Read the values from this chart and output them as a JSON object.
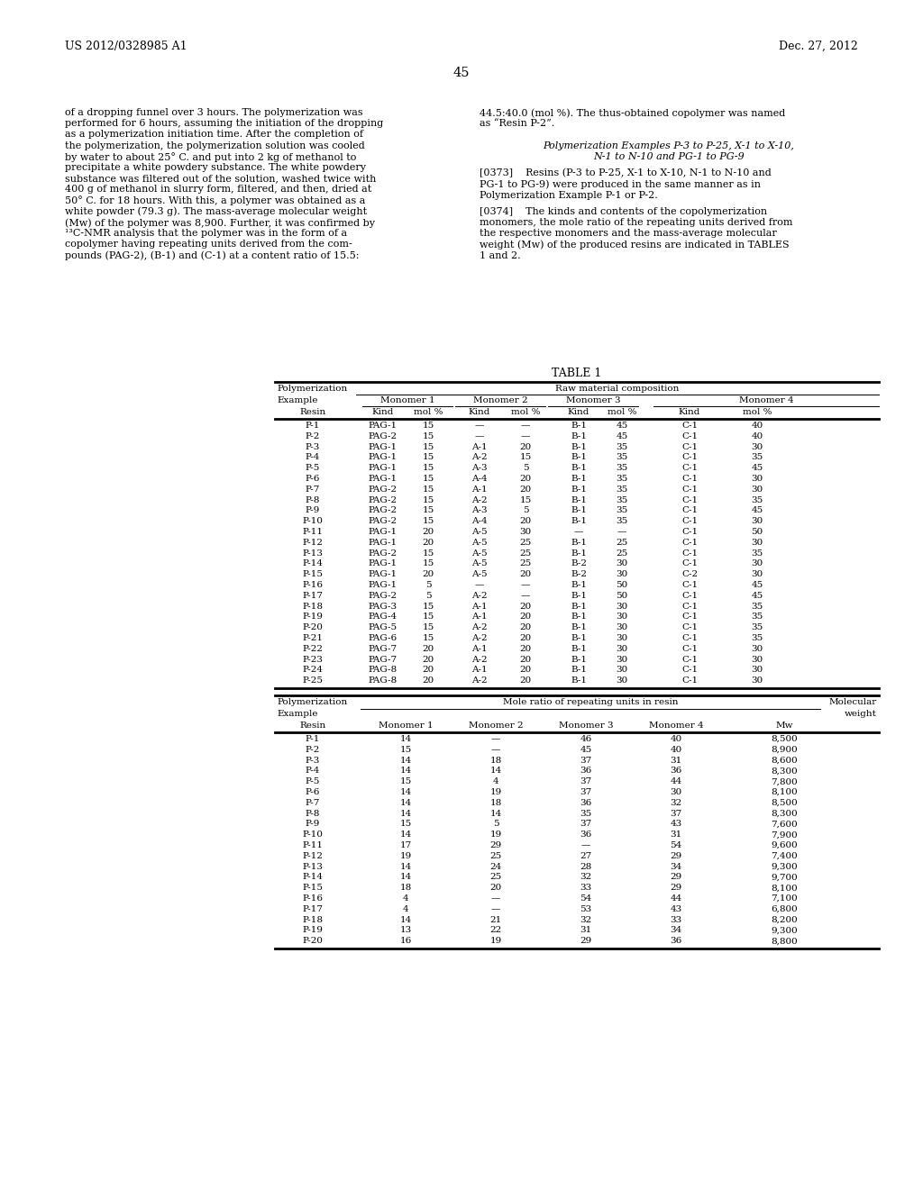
{
  "background_color": "#ffffff",
  "header_left": "US 2012/0328985 A1",
  "header_right": "Dec. 27, 2012",
  "page_number": "45",
  "left_col_text": [
    "of a dropping funnel over 3 hours. The polymerization was",
    "performed for 6 hours, assuming the initiation of the dropping",
    "as a polymerization initiation time. After the completion of",
    "the polymerization, the polymerization solution was cooled",
    "by water to about 25° C. and put into 2 kg of methanol to",
    "precipitate a white powdery substance. The white powdery",
    "substance was filtered out of the solution, washed twice with",
    "400 g of methanol in slurry form, filtered, and then, dried at",
    "50° C. for 18 hours. With this, a polymer was obtained as a",
    "white powder (79.3 g). The mass-average molecular weight",
    "(Mw) of the polymer was 8,900. Further, it was confirmed by",
    "¹³C-NMR analysis that the polymer was in the form of a",
    "copolymer having repeating units derived from the com-",
    "pounds (PAG-2), (B-1) and (C-1) at a content ratio of 15.5:"
  ],
  "right_col_text": [
    "44.5:40.0 (mol %). The thus-obtained copolymer was named",
    "as “Resin P-2”.",
    "",
    "Polymerization Examples P-3 to P-25, X-1 to X-10,",
    "N-1 to N-10 and PG-1 to PG-9",
    "",
    "[0373]    Resins (P-3 to P-25, X-1 to X-10, N-1 to N-10 and",
    "PG-1 to PG-9) were produced in the same manner as in",
    "Polymerization Example P-1 or P-2.",
    "",
    "[0374]    The kinds and contents of the copolymerization",
    "monomers, the mole ratio of the repeating units derived from",
    "the respective monomers and the mass-average molecular",
    "weight (Mw) of the produced resins are indicated in TABLES",
    "1 and 2."
  ],
  "table1_title": "TABLE 1",
  "table1_data": [
    [
      "P-1",
      "PAG-1",
      "15",
      "—",
      "—",
      "B-1",
      "45",
      "C-1",
      "40"
    ],
    [
      "P-2",
      "PAG-2",
      "15",
      "—",
      "—",
      "B-1",
      "45",
      "C-1",
      "40"
    ],
    [
      "P-3",
      "PAG-1",
      "15",
      "A-1",
      "20",
      "B-1",
      "35",
      "C-1",
      "30"
    ],
    [
      "P-4",
      "PAG-1",
      "15",
      "A-2",
      "15",
      "B-1",
      "35",
      "C-1",
      "35"
    ],
    [
      "P-5",
      "PAG-1",
      "15",
      "A-3",
      "5",
      "B-1",
      "35",
      "C-1",
      "45"
    ],
    [
      "P-6",
      "PAG-1",
      "15",
      "A-4",
      "20",
      "B-1",
      "35",
      "C-1",
      "30"
    ],
    [
      "P-7",
      "PAG-2",
      "15",
      "A-1",
      "20",
      "B-1",
      "35",
      "C-1",
      "30"
    ],
    [
      "P-8",
      "PAG-2",
      "15",
      "A-2",
      "15",
      "B-1",
      "35",
      "C-1",
      "35"
    ],
    [
      "P-9",
      "PAG-2",
      "15",
      "A-3",
      "5",
      "B-1",
      "35",
      "C-1",
      "45"
    ],
    [
      "P-10",
      "PAG-2",
      "15",
      "A-4",
      "20",
      "B-1",
      "35",
      "C-1",
      "30"
    ],
    [
      "P-11",
      "PAG-1",
      "20",
      "A-5",
      "30",
      "—",
      "—",
      "C-1",
      "50"
    ],
    [
      "P-12",
      "PAG-1",
      "20",
      "A-5",
      "25",
      "B-1",
      "25",
      "C-1",
      "30"
    ],
    [
      "P-13",
      "PAG-2",
      "15",
      "A-5",
      "25",
      "B-1",
      "25",
      "C-1",
      "35"
    ],
    [
      "P-14",
      "PAG-1",
      "15",
      "A-5",
      "25",
      "B-2",
      "30",
      "C-1",
      "30"
    ],
    [
      "P-15",
      "PAG-1",
      "20",
      "A-5",
      "20",
      "B-2",
      "30",
      "C-2",
      "30"
    ],
    [
      "P-16",
      "PAG-1",
      "5",
      "—",
      "—",
      "B-1",
      "50",
      "C-1",
      "45"
    ],
    [
      "P-17",
      "PAG-2",
      "5",
      "A-2",
      "—",
      "B-1",
      "50",
      "C-1",
      "45"
    ],
    [
      "P-18",
      "PAG-3",
      "15",
      "A-1",
      "20",
      "B-1",
      "30",
      "C-1",
      "35"
    ],
    [
      "P-19",
      "PAG-4",
      "15",
      "A-1",
      "20",
      "B-1",
      "30",
      "C-1",
      "35"
    ],
    [
      "P-20",
      "PAG-5",
      "15",
      "A-2",
      "20",
      "B-1",
      "30",
      "C-1",
      "35"
    ],
    [
      "P-21",
      "PAG-6",
      "15",
      "A-2",
      "20",
      "B-1",
      "30",
      "C-1",
      "35"
    ],
    [
      "P-22",
      "PAG-7",
      "20",
      "A-1",
      "20",
      "B-1",
      "30",
      "C-1",
      "30"
    ],
    [
      "P-23",
      "PAG-7",
      "20",
      "A-2",
      "20",
      "B-1",
      "30",
      "C-1",
      "30"
    ],
    [
      "P-24",
      "PAG-8",
      "20",
      "A-1",
      "20",
      "B-1",
      "30",
      "C-1",
      "30"
    ],
    [
      "P-25",
      "PAG-8",
      "20",
      "A-2",
      "20",
      "B-1",
      "30",
      "C-1",
      "30"
    ]
  ],
  "table2_data": [
    [
      "P-1",
      "14",
      "—",
      "46",
      "40",
      "8,500"
    ],
    [
      "P-2",
      "15",
      "—",
      "45",
      "40",
      "8,900"
    ],
    [
      "P-3",
      "14",
      "18",
      "37",
      "31",
      "8,600"
    ],
    [
      "P-4",
      "14",
      "14",
      "36",
      "36",
      "8,300"
    ],
    [
      "P-5",
      "15",
      "4",
      "37",
      "44",
      "7,800"
    ],
    [
      "P-6",
      "14",
      "19",
      "37",
      "30",
      "8,100"
    ],
    [
      "P-7",
      "14",
      "18",
      "36",
      "32",
      "8,500"
    ],
    [
      "P-8",
      "14",
      "14",
      "35",
      "37",
      "8,300"
    ],
    [
      "P-9",
      "15",
      "5",
      "37",
      "43",
      "7,600"
    ],
    [
      "P-10",
      "14",
      "19",
      "36",
      "31",
      "7,900"
    ],
    [
      "P-11",
      "17",
      "29",
      "—",
      "54",
      "9,600"
    ],
    [
      "P-12",
      "19",
      "25",
      "27",
      "29",
      "7,400"
    ],
    [
      "P-13",
      "14",
      "24",
      "28",
      "34",
      "9,300"
    ],
    [
      "P-14",
      "14",
      "25",
      "32",
      "29",
      "9,700"
    ],
    [
      "P-15",
      "18",
      "20",
      "33",
      "29",
      "8,100"
    ],
    [
      "P-16",
      "4",
      "—",
      "54",
      "44",
      "7,100"
    ],
    [
      "P-17",
      "4",
      "—",
      "53",
      "43",
      "6,800"
    ],
    [
      "P-18",
      "14",
      "21",
      "32",
      "33",
      "8,200"
    ],
    [
      "P-19",
      "13",
      "22",
      "31",
      "34",
      "9,300"
    ],
    [
      "P-20",
      "16",
      "19",
      "29",
      "36",
      "8,800"
    ]
  ]
}
